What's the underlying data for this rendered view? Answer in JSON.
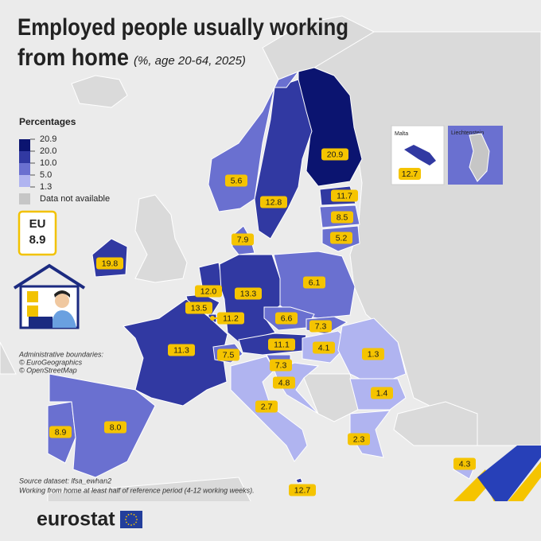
{
  "header": {
    "title_line1": "Employed people usually working",
    "title_line2": "from home",
    "subtitle": "(%, age 20-64, 2025)"
  },
  "legend": {
    "title": "Percentages",
    "breaks": [
      20.9,
      {
        "value": 20,
        "label": "20.0"
      },
      {
        "value": 10,
        "label": "10.0"
      },
      {
        "value": 5,
        "label": "5.0"
      },
      1.3
    ],
    "colors": [
      "#0b1470",
      "#3139a2",
      "#6a70d0",
      "#b0b4f0"
    ],
    "na_label": "Data not available",
    "na_color": "#c6c6c6"
  },
  "eu": {
    "label": "EU",
    "value": 8.9
  },
  "notes": [
    "Administrative boundaries:",
    "© EuroGeographics",
    "© OpenStreetMap"
  ],
  "insets": {
    "malta": {
      "label": "Malta",
      "value": 12.7
    },
    "liechtenstein": {
      "label": "Liechtenstein"
    }
  },
  "map": {
    "values": [
      20.9,
      12.8,
      5.6,
      11.7,
      8.5,
      5.2,
      7.9,
      19.8,
      12.0,
      13.3,
      6.1,
      13.5,
      11.2,
      6.6,
      7.3,
      11.3,
      7.5,
      11.1,
      4.1,
      1.3,
      7.3,
      4.8,
      1.4,
      2.7,
      8.9,
      8.0,
      2.3,
      4.3,
      12.7
    ],
    "value_labels": [
      "20.9",
      "12.8",
      "5.6",
      "11.7",
      "8.5",
      "5.2",
      "7.9",
      "19.8",
      "12.0",
      "13.3",
      "6.1",
      "13.5",
      "11.2",
      "6.6",
      "7.3",
      "11.3",
      "7.5",
      "11.1",
      "4.1",
      "1.3",
      "7.3",
      "4.8",
      "1.4",
      "2.7",
      "8.9",
      "8.0",
      "2.3",
      "4.3",
      "12.7"
    ]
  },
  "source": [
    "Source dataset: lfsa_ewhan2",
    "Working from home at least half of reference period (4-12 working weeks)."
  ],
  "footer": {
    "logo": "eurostat"
  }
}
